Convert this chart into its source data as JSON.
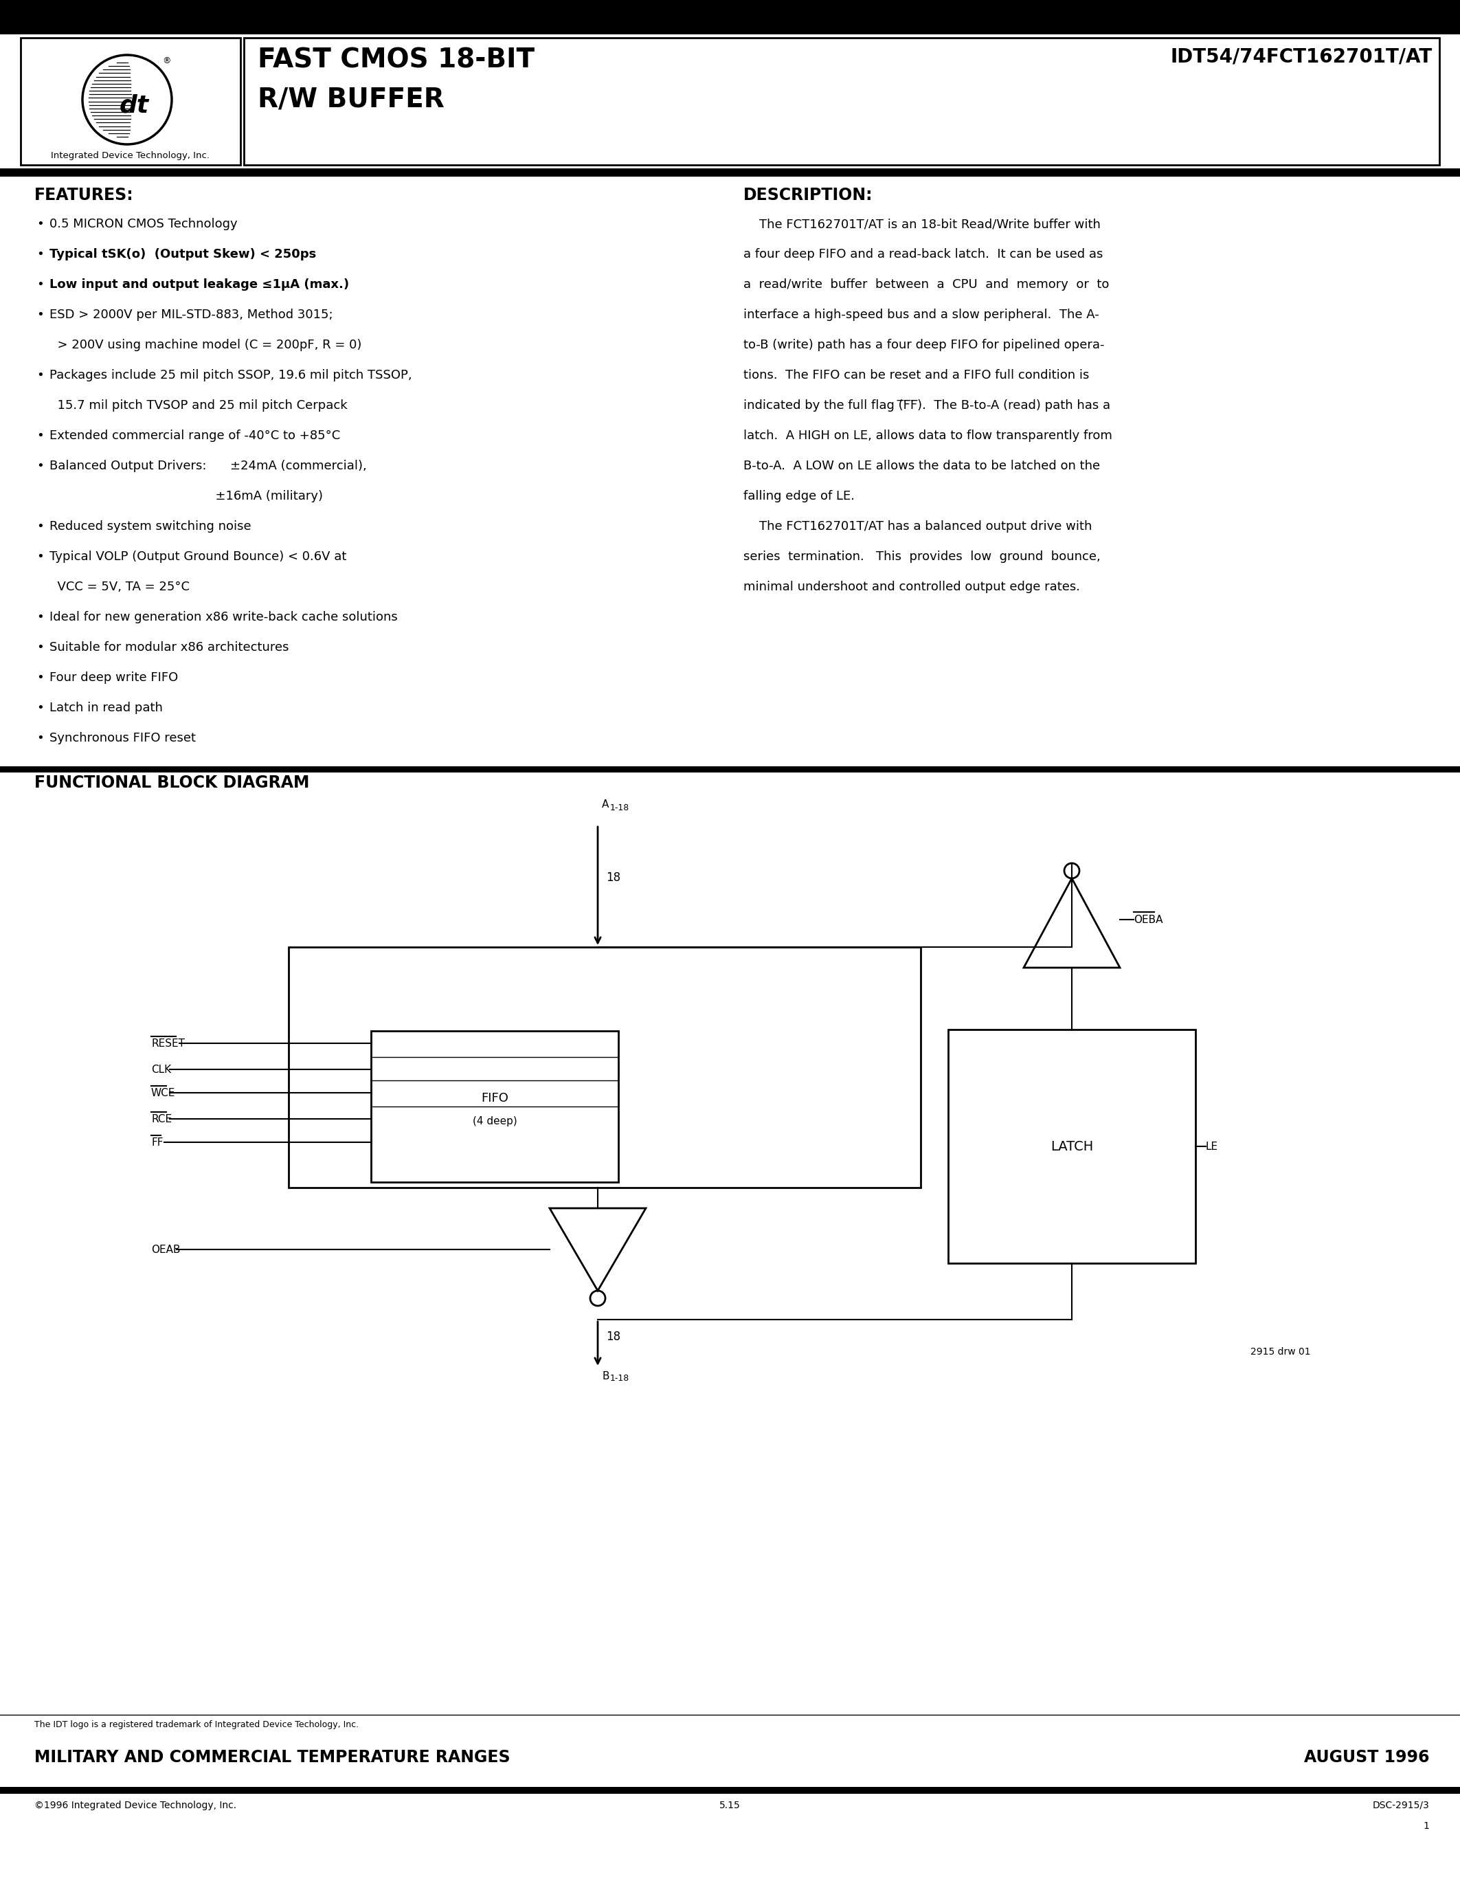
{
  "title_line1": "FAST CMOS 18-BIT",
  "title_line2": "R/W BUFFER",
  "title_part": "IDT54/74FCT162701T/AT",
  "company": "Integrated Device Technology, Inc.",
  "features_title": "FEATURES:",
  "description_title": "DESCRIPTION:",
  "diagram_title": "FUNCTIONAL BLOCK DIAGRAM",
  "footer_trademark": "The IDT logo is a registered trademark of Integrated Device Techology, Inc.",
  "footer_bar_left": "MILITARY AND COMMERCIAL TEMPERATURE RANGES",
  "footer_bar_right": "AUGUST 1996",
  "footer_copy": "©1996 Integrated Device Technology, Inc.",
  "footer_page": "5.15",
  "footer_doc1": "DSC-2915/3",
  "footer_doc2": "1",
  "bg": "#ffffff"
}
